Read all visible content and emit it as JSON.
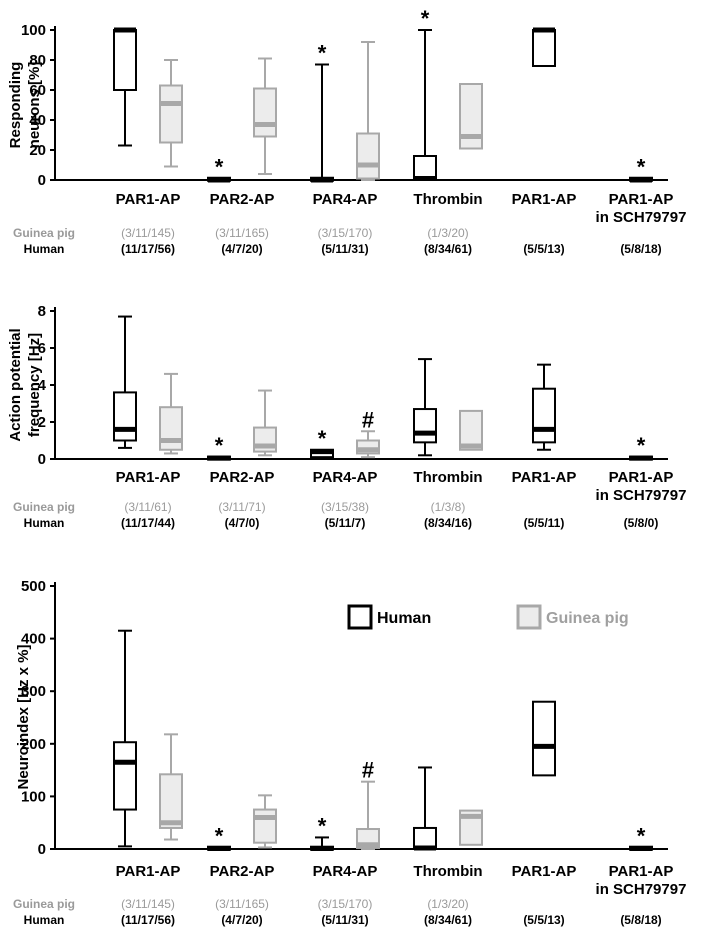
{
  "row_labels": {
    "guinea_pig": "Guinea pig",
    "human": "Human"
  },
  "legend": {
    "human": "Human",
    "guinea_pig": "Guinea pig"
  },
  "colors": {
    "human": "#000000",
    "guinea_pig": "#a8a8a8",
    "guinea_pig_fill": "#ececec"
  },
  "chart_data": [
    {
      "type": "boxplot",
      "title": "",
      "ylabel": [
        "Responding",
        "neurons [%]"
      ],
      "ylim": [
        0,
        100
      ],
      "yticks": [
        0,
        20,
        40,
        60,
        80,
        100
      ],
      "groups": [
        {
          "label": [
            "PAR1-AP"
          ],
          "gp_n": "(3/11/145)",
          "hu_n": "(11/17/56)",
          "human": {
            "min": 23,
            "q1": 60,
            "median": 100,
            "q3": 100,
            "max": 100
          },
          "guinea_pig": {
            "min": 9,
            "q1": 25,
            "median": 51,
            "q3": 63,
            "max": 80
          }
        },
        {
          "label": [
            "PAR2-AP"
          ],
          "gp_n": "(3/11/165)",
          "hu_n": "(4/7/20)",
          "human": {
            "min": 0,
            "q1": 0,
            "median": 0,
            "q3": 1,
            "max": 1,
            "mark": "*"
          },
          "guinea_pig": {
            "min": 4,
            "q1": 29,
            "median": 37,
            "q3": 61,
            "max": 81
          }
        },
        {
          "label": [
            "PAR4-AP"
          ],
          "gp_n": "(3/15/170)",
          "hu_n": "(5/11/31)",
          "human": {
            "min": 0,
            "q1": 0,
            "median": 0,
            "q3": 1,
            "max": 77,
            "mark": "*"
          },
          "guinea_pig": {
            "min": 0,
            "q1": 1,
            "median": 10,
            "q3": 31,
            "max": 92
          }
        },
        {
          "label": [
            "Thrombin"
          ],
          "gp_n": "(1/3/20)",
          "hu_n": "(8/34/61)",
          "human": {
            "min": 0,
            "q1": 0,
            "median": 1,
            "q3": 16,
            "max": 100,
            "mark": "*"
          },
          "guinea_pig": {
            "min": 21,
            "q1": 21,
            "median": 29,
            "q3": 64,
            "max": 64
          }
        },
        {
          "label": [
            "PAR1-AP"
          ],
          "gp_n": "",
          "hu_n": "(5/5/13)",
          "human": {
            "min": 76,
            "q1": 76,
            "median": 100,
            "q3": 100,
            "max": 100
          }
        },
        {
          "label": [
            "PAR1-AP",
            "in SCH79797"
          ],
          "gp_n": "",
          "hu_n": "(5/8/18)",
          "human": {
            "min": 0,
            "q1": 0,
            "median": 0,
            "q3": 1,
            "max": 1,
            "mark": "*"
          }
        }
      ]
    },
    {
      "type": "boxplot",
      "title": "",
      "ylabel": [
        "Action potential",
        "frequency [Hz]"
      ],
      "ylim": [
        0,
        8
      ],
      "yticks": [
        0,
        2,
        4,
        6,
        8
      ],
      "groups": [
        {
          "label": [
            "PAR1-AP"
          ],
          "gp_n": "(3/11/61)",
          "hu_n": "(11/17/44)",
          "human": {
            "min": 0.6,
            "q1": 1.0,
            "median": 1.6,
            "q3": 3.6,
            "max": 7.7
          },
          "guinea_pig": {
            "min": 0.3,
            "q1": 0.5,
            "median": 1.0,
            "q3": 2.8,
            "max": 4.6
          }
        },
        {
          "label": [
            "PAR2-AP"
          ],
          "gp_n": "(3/11/71)",
          "hu_n": "(4/7/0)",
          "human": {
            "min": 0,
            "q1": 0,
            "median": 0.05,
            "q3": 0.1,
            "max": 0.1,
            "mark": "*"
          },
          "guinea_pig": {
            "min": 0.2,
            "q1": 0.4,
            "median": 0.7,
            "q3": 1.7,
            "max": 3.7
          }
        },
        {
          "label": [
            "PAR4-AP"
          ],
          "gp_n": "(3/15/38)",
          "hu_n": "(5/11/7)",
          "human": {
            "min": 0.1,
            "q1": 0.1,
            "median": 0.4,
            "q3": 0.5,
            "max": 0.5,
            "mark": "*"
          },
          "guinea_pig": {
            "min": 0.1,
            "q1": 0.3,
            "median": 0.5,
            "q3": 1.0,
            "max": 1.5,
            "mark": "#"
          }
        },
        {
          "label": [
            "Thrombin"
          ],
          "gp_n": "(1/3/8)",
          "hu_n": "(8/34/16)",
          "human": {
            "min": 0.2,
            "q1": 0.9,
            "median": 1.4,
            "q3": 2.7,
            "max": 5.4
          },
          "guinea_pig": {
            "min": 0.5,
            "q1": 0.5,
            "median": 0.7,
            "q3": 2.6,
            "max": 2.6
          }
        },
        {
          "label": [
            "PAR1-AP"
          ],
          "gp_n": "",
          "hu_n": "(5/5/11)",
          "human": {
            "min": 0.5,
            "q1": 0.9,
            "median": 1.6,
            "q3": 3.8,
            "max": 5.1
          }
        },
        {
          "label": [
            "PAR1-AP",
            "in SCH79797"
          ],
          "gp_n": "",
          "hu_n": "(5/8/0)",
          "human": {
            "min": 0,
            "q1": 0,
            "median": 0.05,
            "q3": 0.1,
            "max": 0.1,
            "mark": "*"
          }
        }
      ]
    },
    {
      "type": "boxplot",
      "title": "",
      "ylabel": [
        "Neuroindex [Hz x %]"
      ],
      "ylim": [
        0,
        500
      ],
      "yticks": [
        0,
        100,
        200,
        300,
        400,
        500
      ],
      "groups": [
        {
          "label": [
            "PAR1-AP"
          ],
          "gp_n": "(3/11/145)",
          "hu_n": "(11/17/56)",
          "human": {
            "min": 5,
            "q1": 75,
            "median": 165,
            "q3": 203,
            "max": 415
          },
          "guinea_pig": {
            "min": 18,
            "q1": 40,
            "median": 50,
            "q3": 142,
            "max": 218
          }
        },
        {
          "label": [
            "PAR2-AP"
          ],
          "gp_n": "(3/11/165)",
          "hu_n": "(4/7/20)",
          "human": {
            "min": 0,
            "q1": 0,
            "median": 1,
            "q3": 3,
            "max": 3,
            "mark": "*"
          },
          "guinea_pig": {
            "min": 3,
            "q1": 12,
            "median": 60,
            "q3": 75,
            "max": 102
          }
        },
        {
          "label": [
            "PAR4-AP"
          ],
          "gp_n": "(3/15/170)",
          "hu_n": "(5/11/31)",
          "human": {
            "min": 0,
            "q1": 0,
            "median": 1,
            "q3": 3,
            "max": 22,
            "mark": "*"
          },
          "guinea_pig": {
            "min": 0,
            "q1": 2,
            "median": 8,
            "q3": 38,
            "max": 128,
            "mark": "#"
          }
        },
        {
          "label": [
            "Thrombin"
          ],
          "gp_n": "(1/3/20)",
          "hu_n": "(8/34/61)",
          "human": {
            "min": 0,
            "q1": 0,
            "median": 2,
            "q3": 40,
            "max": 155
          },
          "guinea_pig": {
            "min": 8,
            "q1": 8,
            "median": 62,
            "q3": 73,
            "max": 73
          }
        },
        {
          "label": [
            "PAR1-AP"
          ],
          "gp_n": "",
          "hu_n": "(5/5/13)",
          "human": {
            "min": 140,
            "q1": 140,
            "median": 195,
            "q3": 280,
            "max": 280
          }
        },
        {
          "label": [
            "PAR1-AP",
            "in SCH79797"
          ],
          "gp_n": "",
          "hu_n": "(5/8/18)",
          "human": {
            "min": 0,
            "q1": 0,
            "median": 1,
            "q3": 3,
            "max": 3,
            "mark": "*"
          }
        }
      ]
    }
  ]
}
